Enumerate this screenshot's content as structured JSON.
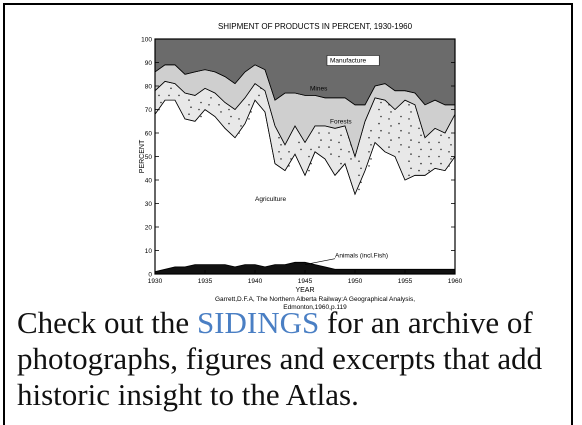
{
  "chart_data": {
    "type": "area",
    "title": "SHIPMENT OF PRODUCTS IN PERCENT, 1930-1960",
    "xlabel": "YEAR",
    "ylabel": "PERCENT",
    "xlim": [
      1930,
      1960
    ],
    "ylim": [
      0,
      100
    ],
    "x_ticks": [
      "1930",
      "1935",
      "1940",
      "1945",
      "1950",
      "1955",
      "1960"
    ],
    "y_ticks": [
      "0",
      "10",
      "20",
      "30",
      "40",
      "50",
      "60",
      "70",
      "80",
      "90",
      "100"
    ],
    "stacked": true,
    "x": [
      1930,
      1931,
      1932,
      1933,
      1934,
      1935,
      1936,
      1937,
      1938,
      1939,
      1940,
      1941,
      1942,
      1943,
      1944,
      1945,
      1946,
      1947,
      1948,
      1949,
      1950,
      1951,
      1952,
      1953,
      1954,
      1955,
      1956,
      1957,
      1958,
      1959,
      1960
    ],
    "series": [
      {
        "name": "Animals (incl.Fish)",
        "color": "#111111",
        "values": [
          1,
          2,
          3,
          3,
          4,
          4,
          4,
          4,
          3,
          4,
          4,
          3,
          4,
          4,
          5,
          5,
          4,
          3,
          2,
          2,
          2,
          2,
          2,
          2,
          2,
          2,
          2,
          2,
          2,
          2,
          2
        ]
      },
      {
        "name": "Agriculture",
        "color": "#ffffff",
        "values": [
          67,
          72,
          71,
          63,
          61,
          66,
          63,
          58,
          55,
          60,
          70,
          66,
          43,
          40,
          46,
          37,
          48,
          46,
          40,
          45,
          32,
          42,
          54,
          50,
          48,
          38,
          40,
          40,
          43,
          42,
          48
        ]
      },
      {
        "name": "Forests",
        "color": "#e8e8e8",
        "values": [
          10,
          8,
          7,
          11,
          11,
          9,
          10,
          11,
          12,
          11,
          7,
          9,
          16,
          11,
          12,
          14,
          11,
          14,
          20,
          16,
          16,
          21,
          19,
          22,
          20,
          34,
          30,
          16,
          17,
          16,
          18
        ]
      },
      {
        "name": "Mines",
        "color": "#cfcfcf",
        "values": [
          8,
          7,
          8,
          8,
          10,
          8,
          9,
          11,
          11,
          11,
          8,
          9,
          11,
          22,
          14,
          20,
          13,
          12,
          13,
          12,
          22,
          7,
          5,
          7,
          8,
          4,
          5,
          14,
          12,
          12,
          4
        ]
      },
      {
        "name": "Manufacture",
        "color": "#6b6b6b",
        "values": [
          14,
          11,
          11,
          15,
          14,
          13,
          14,
          16,
          19,
          14,
          11,
          13,
          26,
          23,
          23,
          24,
          24,
          25,
          25,
          25,
          28,
          28,
          20,
          19,
          22,
          22,
          23,
          28,
          26,
          28,
          28
        ]
      }
    ],
    "annotations": [
      "Manufacture",
      "Mines",
      "Forests",
      "Agriculture",
      "Animals (incl.Fish)"
    ],
    "source": "Garrett,D.F.A, The Northern Alberta Railway:A Geographical Analysis, Edmonton,1960,p.119",
    "grid": false,
    "legend": "none"
  },
  "caption": {
    "before": "Check out the ",
    "link": "SIDINGS",
    "after": " for an archive of photographs, figures and excerpts that add historic insight to the Atlas."
  }
}
